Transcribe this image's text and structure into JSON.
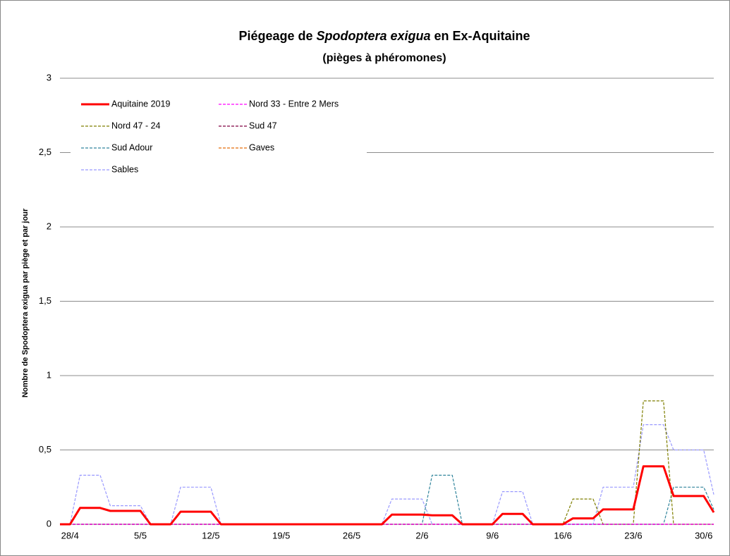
{
  "chart_data": {
    "type": "line",
    "title": [
      "Piégeage de ",
      "Spodoptera  exigua",
      "  en Ex-Aquitaine"
    ],
    "subtitle": "(pièges à phéromones)",
    "y_label": "Nombre de Spodoptera exigua par piège et par jour",
    "categories": [
      null,
      "28/4",
      null,
      null,
      null,
      null,
      null,
      null,
      "5/5",
      null,
      null,
      null,
      null,
      null,
      null,
      "12/5",
      null,
      null,
      null,
      null,
      null,
      null,
      "19/5",
      null,
      null,
      null,
      null,
      null,
      null,
      "26/5",
      null,
      null,
      null,
      null,
      null,
      null,
      "2/6",
      null,
      null,
      null,
      null,
      null,
      null,
      "9/6",
      null,
      null,
      null,
      null,
      null,
      null,
      "16/6",
      null,
      null,
      null,
      null,
      null,
      null,
      "23/6",
      null,
      null,
      null,
      null,
      null,
      null,
      "30/6",
      null
    ],
    "ylim": [
      0,
      3
    ],
    "yticks": [
      0,
      {
        "value": 0.5,
        "label": "0,5"
      },
      1,
      {
        "value": 1.5,
        "label": "1,5"
      },
      2,
      {
        "value": 2.5,
        "label": "2,5"
      },
      3
    ],
    "grid": true,
    "series": [
      {
        "name": "Aquitaine 2019",
        "color": "#ff0000",
        "line_style": "solid",
        "values": [
          0,
          0,
          0.11,
          0.11,
          0.11,
          0.09,
          0.09,
          0.09,
          0.09,
          0,
          0,
          0,
          0.085,
          0.085,
          0.085,
          0.085,
          0,
          0,
          0,
          0,
          0,
          0,
          0,
          0,
          0,
          0,
          0,
          0,
          0,
          0,
          0,
          0,
          0,
          0.065,
          0.065,
          0.065,
          0.065,
          0.06,
          0.06,
          0.06,
          0,
          0,
          0,
          0,
          0.07,
          0.07,
          0.07,
          0,
          0,
          0,
          0,
          0.04,
          0.04,
          0.04,
          0.1,
          0.1,
          0.1,
          0.1,
          0.39,
          0.39,
          0.39,
          0.19,
          0.19,
          0.19,
          0.19,
          0.08
        ]
      },
      {
        "name": "Nord 33 - Entre 2 Mers",
        "color": "#ff00ff",
        "line_style": "dashed",
        "values": [
          0,
          0,
          0,
          0,
          0,
          0,
          0,
          0,
          0,
          0,
          0,
          0,
          0,
          0,
          0,
          0,
          0,
          0,
          0,
          0,
          0,
          0,
          0,
          0,
          0,
          0,
          0,
          0,
          0,
          0,
          0,
          0,
          0,
          0,
          0,
          0,
          0,
          0,
          0,
          0,
          0,
          0,
          0,
          0,
          0,
          0,
          0,
          0,
          0,
          0,
          0,
          0,
          0,
          0,
          0,
          0,
          0,
          0,
          0,
          0,
          0,
          0,
          0,
          0,
          0,
          0
        ]
      },
      {
        "name": "Nord 47 - 24",
        "color": "#7f7f00",
        "line_style": "dashed",
        "values": [
          0,
          0,
          0,
          0,
          0,
          0,
          0,
          0,
          0,
          0,
          0,
          0,
          0,
          0,
          0,
          0,
          0,
          0,
          0,
          0,
          0,
          0,
          0,
          0,
          0,
          0,
          0,
          0,
          0,
          0,
          0,
          0,
          0,
          0,
          0,
          0,
          0,
          0,
          0,
          0,
          0,
          0,
          0,
          0,
          0,
          0,
          0,
          0,
          0,
          0,
          0,
          0.17,
          0.17,
          0.17,
          0,
          0,
          0,
          0,
          0.83,
          0.83,
          0.83,
          0,
          0,
          0,
          0,
          0
        ]
      },
      {
        "name": "Sud 47",
        "color": "#800040",
        "line_style": "dashed",
        "values": [
          0,
          0,
          0,
          0,
          0,
          0,
          0,
          0,
          0,
          0,
          0,
          0,
          0,
          0,
          0,
          0,
          0,
          0,
          0,
          0,
          0,
          0,
          0,
          0,
          0,
          0,
          0,
          0,
          0,
          0,
          0,
          0,
          0,
          0,
          0,
          0,
          0,
          0,
          0,
          0,
          0,
          0,
          0,
          0,
          0,
          0,
          0,
          0,
          0,
          0,
          0,
          0,
          0,
          0,
          0,
          0,
          0,
          0,
          0,
          0,
          0,
          0,
          0,
          0,
          0,
          0
        ]
      },
      {
        "name": "Sud Adour",
        "color": "#31859c",
        "line_style": "dashed",
        "values": [
          0,
          0,
          0,
          0,
          0,
          0,
          0,
          0,
          0,
          0,
          0,
          0,
          0,
          0,
          0,
          0,
          0,
          0,
          0,
          0,
          0,
          0,
          0,
          0,
          0,
          0,
          0,
          0,
          0,
          0,
          0,
          0,
          0,
          0,
          0,
          0,
          0,
          0.33,
          0.33,
          0.33,
          0,
          0,
          0,
          0,
          0,
          0,
          0,
          0,
          0,
          0,
          0,
          0,
          0,
          0,
          0,
          0,
          0,
          0,
          0,
          0,
          0,
          0.25,
          0.25,
          0.25,
          0.25,
          0.1
        ]
      },
      {
        "name": "Gaves",
        "color": "#e46c0a",
        "line_style": "dashed",
        "values": [
          0,
          0,
          0,
          0,
          0,
          0,
          0,
          0,
          0,
          0,
          0,
          0,
          0,
          0,
          0,
          0,
          0,
          0,
          0,
          0,
          0,
          0,
          0,
          0,
          0,
          0,
          0,
          0,
          0,
          0,
          0,
          0,
          0,
          0,
          0,
          0,
          0,
          0,
          0,
          0,
          0,
          0,
          0,
          0,
          0,
          0,
          0,
          0,
          0,
          0,
          0,
          0,
          0,
          0,
          0,
          0,
          0,
          0,
          0,
          0,
          0,
          0,
          0,
          0,
          0,
          0
        ]
      },
      {
        "name": "Sables",
        "color": "#9999ff",
        "line_style": "dashed",
        "values": [
          0,
          0,
          0.33,
          0.33,
          0.33,
          0.125,
          0.125,
          0.125,
          0.125,
          0,
          0,
          0,
          0.25,
          0.25,
          0.25,
          0.25,
          0,
          0,
          0,
          0,
          0,
          0,
          0,
          0,
          0,
          0,
          0,
          0,
          0,
          0,
          0,
          0,
          0,
          0.17,
          0.17,
          0.17,
          0.17,
          0,
          0,
          0,
          0,
          0,
          0,
          0,
          0.22,
          0.22,
          0.22,
          0,
          0,
          0,
          0,
          0,
          0,
          0,
          0.25,
          0.25,
          0.25,
          0.25,
          0.67,
          0.67,
          0.67,
          0.5,
          0.5,
          0.5,
          0.5,
          0.2
        ]
      }
    ]
  }
}
